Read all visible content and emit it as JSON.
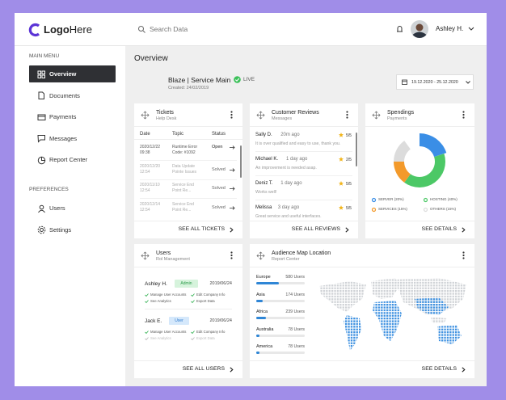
{
  "logo": {
    "bold": "Logo",
    "light": "Here"
  },
  "search": "Search Data",
  "user": "Ashley H.",
  "sidebar": {
    "main_heading": "MAIN MENU",
    "main_items": [
      "Overview",
      "Documents",
      "Payments",
      "Messages",
      "Report Center"
    ],
    "pref_heading": "PREFERENCES",
    "pref_items": [
      "Users",
      "Settings"
    ]
  },
  "overview": {
    "title": "Overview",
    "project": "Blaze | Service Main",
    "created": "Created: 24/02/2019",
    "status": "LIVE",
    "date_range": "19.12.2020 - 25.12.2020"
  },
  "tickets": {
    "title": "Tickets",
    "subtitle": "Help Desk",
    "columns": [
      "Date",
      "Topic",
      "Status"
    ],
    "rows": [
      {
        "date": "2020/12/22",
        "time": "09:38",
        "topic": "Runtime Error",
        "topic2": "Code: #1092",
        "status": "Open"
      },
      {
        "date": "2020/12/20",
        "time": "12:54",
        "topic": "Data Update",
        "topic2": "Pointe Issues",
        "status": "Solved"
      },
      {
        "date": "2020/11/10",
        "time": "12:54",
        "topic": "Service End",
        "topic2": "Point Re...",
        "status": "Solved"
      },
      {
        "date": "2020/12/14",
        "time": "12:54",
        "topic": "Service End",
        "topic2": "Point Re...",
        "status": "Solved"
      }
    ],
    "footer": "SEE ALL TICKETS"
  },
  "reviews": {
    "title": "Customer Reviews",
    "subtitle": "Messages",
    "rows": [
      {
        "name": "Sally D.",
        "time": "20m ago",
        "rating": "5/5",
        "comment": "It is over qualified and easy to use, thank you."
      },
      {
        "name": "Michael K.",
        "time": "1 day ago",
        "rating": "2/5",
        "comment": "An improvement is needed asap."
      },
      {
        "name": "Deniz T.",
        "time": "1 day ago",
        "rating": "5/5",
        "comment": "Works well!"
      },
      {
        "name": "Melissa",
        "time": "3 day ago",
        "rating": "5/5",
        "comment": "Great service and useful interfaces."
      }
    ],
    "footer": "SEE ALL REVIEWS"
  },
  "spendings": {
    "title": "Spendings",
    "subtitle": "Payments",
    "segments": [
      {
        "label": "SERVER (20%)",
        "value": 20,
        "color": "#3a8ee6"
      },
      {
        "label": "HOSTING (40%)",
        "value": 40,
        "color": "#4cc866"
      },
      {
        "label": "SERVICES (15%)",
        "value": 15,
        "color": "#f39a2b"
      },
      {
        "label": "OTHERS (15%)",
        "value": 15,
        "color": "#dcdcdc"
      }
    ],
    "footer": "SEE DETAILS"
  },
  "users": {
    "title": "Users",
    "subtitle": "Rol Management",
    "people": [
      {
        "name": "Ashley H.",
        "role": "Admin",
        "date": "2019/06/24",
        "perms": [
          "Manage User Accounts",
          "Edit Company Info",
          "See Analytics",
          "Export Data"
        ]
      },
      {
        "name": "Jack E.",
        "role": "User",
        "date": "2019/06/24",
        "perms": [
          "Manage User Accounts",
          "Edit Company Info",
          "See Analytics",
          "Export Data"
        ]
      }
    ],
    "footer": "SEE ALL USERS"
  },
  "audience": {
    "title": "Audience Map Location",
    "subtitle": "Report Center",
    "regions": [
      {
        "name": "Europe",
        "value": 580,
        "label": "580 Users"
      },
      {
        "name": "Asia",
        "value": 174,
        "label": "174 Users"
      },
      {
        "name": "Africa",
        "value": 239,
        "label": "239 Users"
      },
      {
        "name": "Australia",
        "value": 78,
        "label": "78 Users"
      },
      {
        "name": "America",
        "value": 78,
        "label": "78 Users"
      }
    ],
    "footer": "SEE DETAILS"
  }
}
